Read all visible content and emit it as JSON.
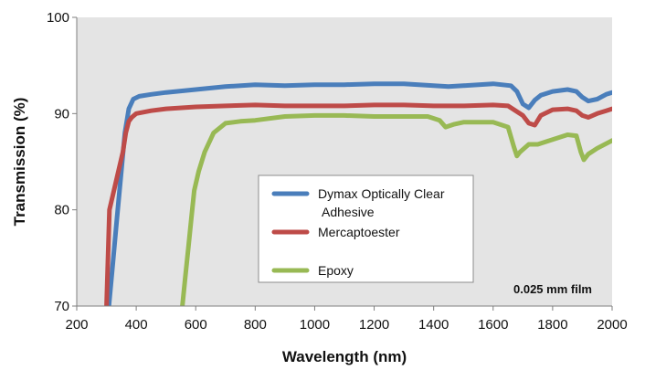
{
  "chart_data": {
    "type": "line",
    "xlabel": "Wavelength (nm)",
    "ylabel": "Transmission (%)",
    "xlim": [
      200,
      2000
    ],
    "ylim": [
      70,
      100
    ],
    "xticks": [
      200,
      400,
      600,
      800,
      1000,
      1200,
      1400,
      1600,
      1800,
      2000
    ],
    "yticks": [
      70,
      80,
      90,
      100
    ],
    "grid": false,
    "plot_background": "#e4e4e4",
    "legend_position": "center",
    "annotation": "0.025 mm film",
    "series": [
      {
        "name": "Dymax Optically Clear Adhesive",
        "legend_lines": [
          "Dymax Optically Clear",
          "Adhesive"
        ],
        "color": "#4a7ebb",
        "x": [
          308,
          320,
          335,
          350,
          362,
          375,
          390,
          410,
          450,
          500,
          600,
          700,
          800,
          900,
          1000,
          1100,
          1200,
          1300,
          1400,
          1450,
          1500,
          1600,
          1660,
          1680,
          1700,
          1720,
          1740,
          1760,
          1800,
          1850,
          1880,
          1900,
          1920,
          1950,
          1980,
          2000
        ],
        "y": [
          70,
          74,
          79,
          84,
          88,
          90.5,
          91.5,
          91.8,
          92.0,
          92.2,
          92.5,
          92.8,
          93.0,
          92.9,
          93.0,
          93.0,
          93.1,
          93.1,
          92.9,
          92.8,
          92.9,
          93.1,
          92.9,
          92.3,
          91.0,
          90.6,
          91.4,
          91.9,
          92.3,
          92.5,
          92.3,
          91.7,
          91.3,
          91.5,
          92.0,
          92.2
        ]
      },
      {
        "name": "Mercaptoester",
        "color": "#be4b48",
        "x": [
          300,
          305,
          310,
          325,
          340,
          355,
          365,
          375,
          385,
          400,
          450,
          500,
          600,
          700,
          800,
          900,
          1000,
          1100,
          1200,
          1300,
          1400,
          1500,
          1600,
          1650,
          1700,
          1720,
          1740,
          1760,
          1800,
          1850,
          1880,
          1900,
          1920,
          1950,
          1980,
          2000
        ],
        "y": [
          70,
          75,
          80,
          82,
          84,
          86,
          88,
          89.2,
          89.6,
          90.0,
          90.3,
          90.5,
          90.7,
          90.8,
          90.9,
          90.8,
          90.8,
          90.8,
          90.9,
          90.9,
          90.8,
          90.8,
          90.9,
          90.8,
          89.8,
          89.0,
          88.8,
          89.8,
          90.4,
          90.5,
          90.3,
          89.8,
          89.6,
          90.0,
          90.3,
          90.5
        ]
      },
      {
        "name": "Epoxy",
        "color": "#98b954",
        "x": [
          555,
          565,
          575,
          585,
          595,
          610,
          630,
          660,
          700,
          750,
          800,
          900,
          1000,
          1100,
          1200,
          1300,
          1380,
          1420,
          1440,
          1470,
          1500,
          1600,
          1650,
          1670,
          1680,
          1690,
          1720,
          1750,
          1800,
          1850,
          1880,
          1895,
          1905,
          1920,
          1950,
          2000
        ],
        "y": [
          70,
          73,
          76,
          79,
          82,
          84,
          86,
          88,
          89.0,
          89.2,
          89.3,
          89.7,
          89.8,
          89.8,
          89.7,
          89.7,
          89.7,
          89.3,
          88.6,
          88.9,
          89.1,
          89.1,
          88.6,
          86.5,
          85.6,
          86.0,
          86.8,
          86.8,
          87.3,
          87.8,
          87.7,
          86.0,
          85.2,
          85.8,
          86.4,
          87.2
        ]
      }
    ]
  }
}
